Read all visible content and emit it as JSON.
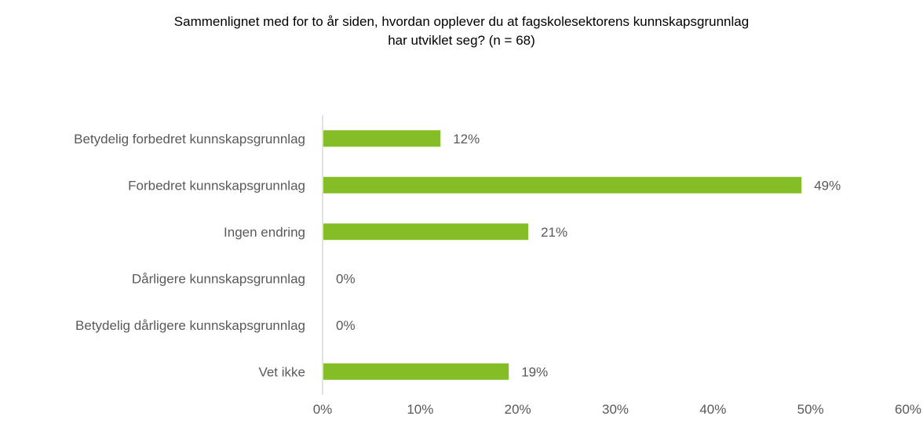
{
  "chart_data": {
    "type": "bar",
    "orientation": "horizontal",
    "title": "Sammenlignet med for to år siden, hvordan opplever du at fagskolesektorens kunnskapsgrunnlag har utviklet seg? (n = 68)",
    "title_lines": [
      "Sammenlignet med for to år siden, hvordan opplever du at fagskolesektorens kunnskapsgrunnlag",
      "har utviklet seg? (n = 68)"
    ],
    "categories": [
      "Betydelig forbedret kunnskapsgrunnlag",
      "Forbedret kunnskapsgrunnlag",
      "Ingen endring",
      "Dårligere kunnskapsgrunnlag",
      "Betydelig dårligere kunnskapsgrunnlag",
      "Vet ikke"
    ],
    "values": [
      12,
      49,
      21,
      0,
      0,
      19
    ],
    "data_labels": [
      "12%",
      "49%",
      "21%",
      "0%",
      "0%",
      "19%"
    ],
    "xlim": [
      0,
      60
    ],
    "x_ticks": [
      0,
      10,
      20,
      30,
      40,
      50,
      60
    ],
    "x_tick_labels": [
      "0%",
      "10%",
      "20%",
      "30%",
      "40%",
      "50%",
      "60%"
    ],
    "xlabel": "",
    "ylabel": "",
    "bar_color": "#84bd26",
    "grid": false,
    "legend": "none"
  }
}
